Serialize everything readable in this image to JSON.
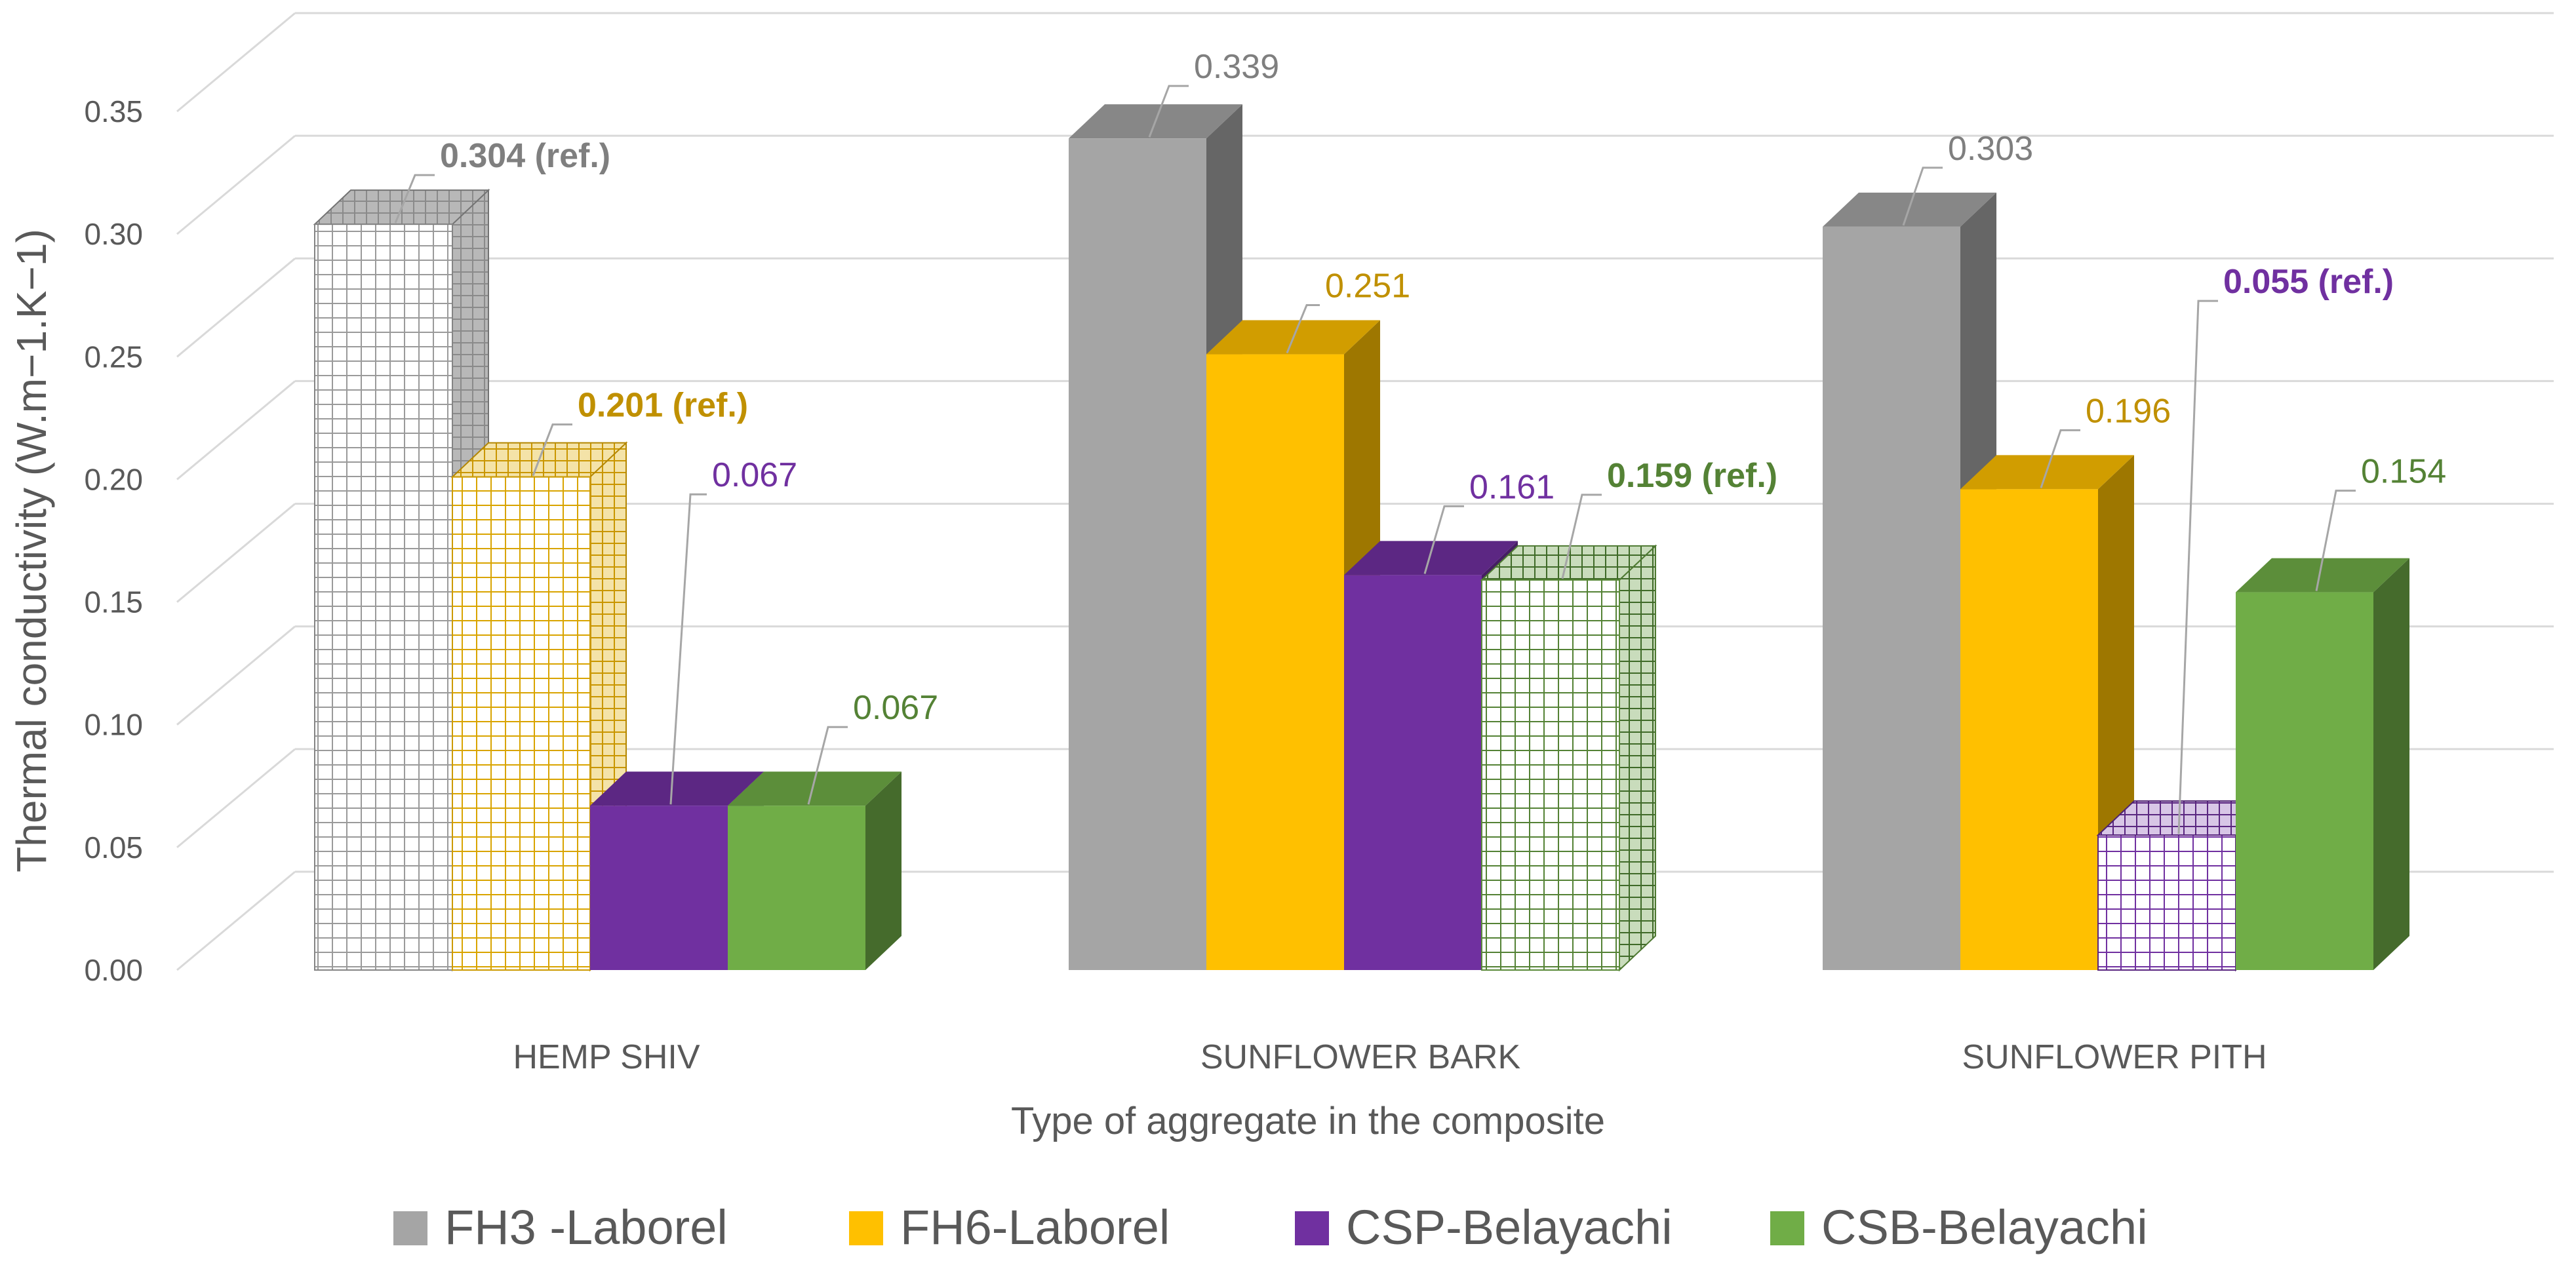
{
  "chart_data": {
    "type": "bar",
    "style": "3d-clustered-column",
    "title": "",
    "xlabel": "Type of aggregate  in the composite",
    "ylabel": "Thermal conductivity (W.m−1.K−1)",
    "ylim": [
      0,
      0.35
    ],
    "yticks": [
      "0.00",
      "0.05",
      "0.10",
      "0.15",
      "0.20",
      "0.25",
      "0.30",
      "0.35"
    ],
    "grid": true,
    "legend_position": "bottom",
    "categories": [
      "HEMP SHIV",
      "SUNFLOWER BARK",
      "SUNFLOWER PITH"
    ],
    "series": [
      {
        "name": "FH3 -Laborel",
        "color": "#a5a5a5",
        "values": [
          0.304,
          0.339,
          0.303
        ],
        "labels": [
          "0.304 (ref.)",
          "0.339",
          "0.303"
        ],
        "label_colors": [
          "#7f7f7f",
          "#7f7f7f",
          "#7f7f7f"
        ],
        "reference": [
          true,
          false,
          false
        ]
      },
      {
        "name": "FH6-Laborel",
        "color": "#ffc000",
        "values": [
          0.201,
          0.251,
          0.196
        ],
        "labels": [
          "0.201 (ref.)",
          "0.251",
          "0.196"
        ],
        "label_colors": [
          "#c09000",
          "#c09000",
          "#c09000"
        ],
        "reference": [
          true,
          false,
          false
        ]
      },
      {
        "name": "CSP-Belayachi",
        "color": "#7030a0",
        "values": [
          0.067,
          0.161,
          0.055
        ],
        "labels": [
          "0.067",
          "0.161",
          "0.055 (ref.)"
        ],
        "label_colors": [
          "#7030a0",
          "#7030a0",
          "#7030a0"
        ],
        "reference": [
          false,
          false,
          true
        ]
      },
      {
        "name": "CSB-Belayachi",
        "color": "#70ad47",
        "values": [
          0.067,
          0.159,
          0.154
        ],
        "labels": [
          "0.067",
          "0.159 (ref.)",
          "0.154"
        ],
        "label_colors": [
          "#548235",
          "#548235",
          "#548235"
        ],
        "reference": [
          false,
          true,
          false
        ]
      }
    ]
  }
}
